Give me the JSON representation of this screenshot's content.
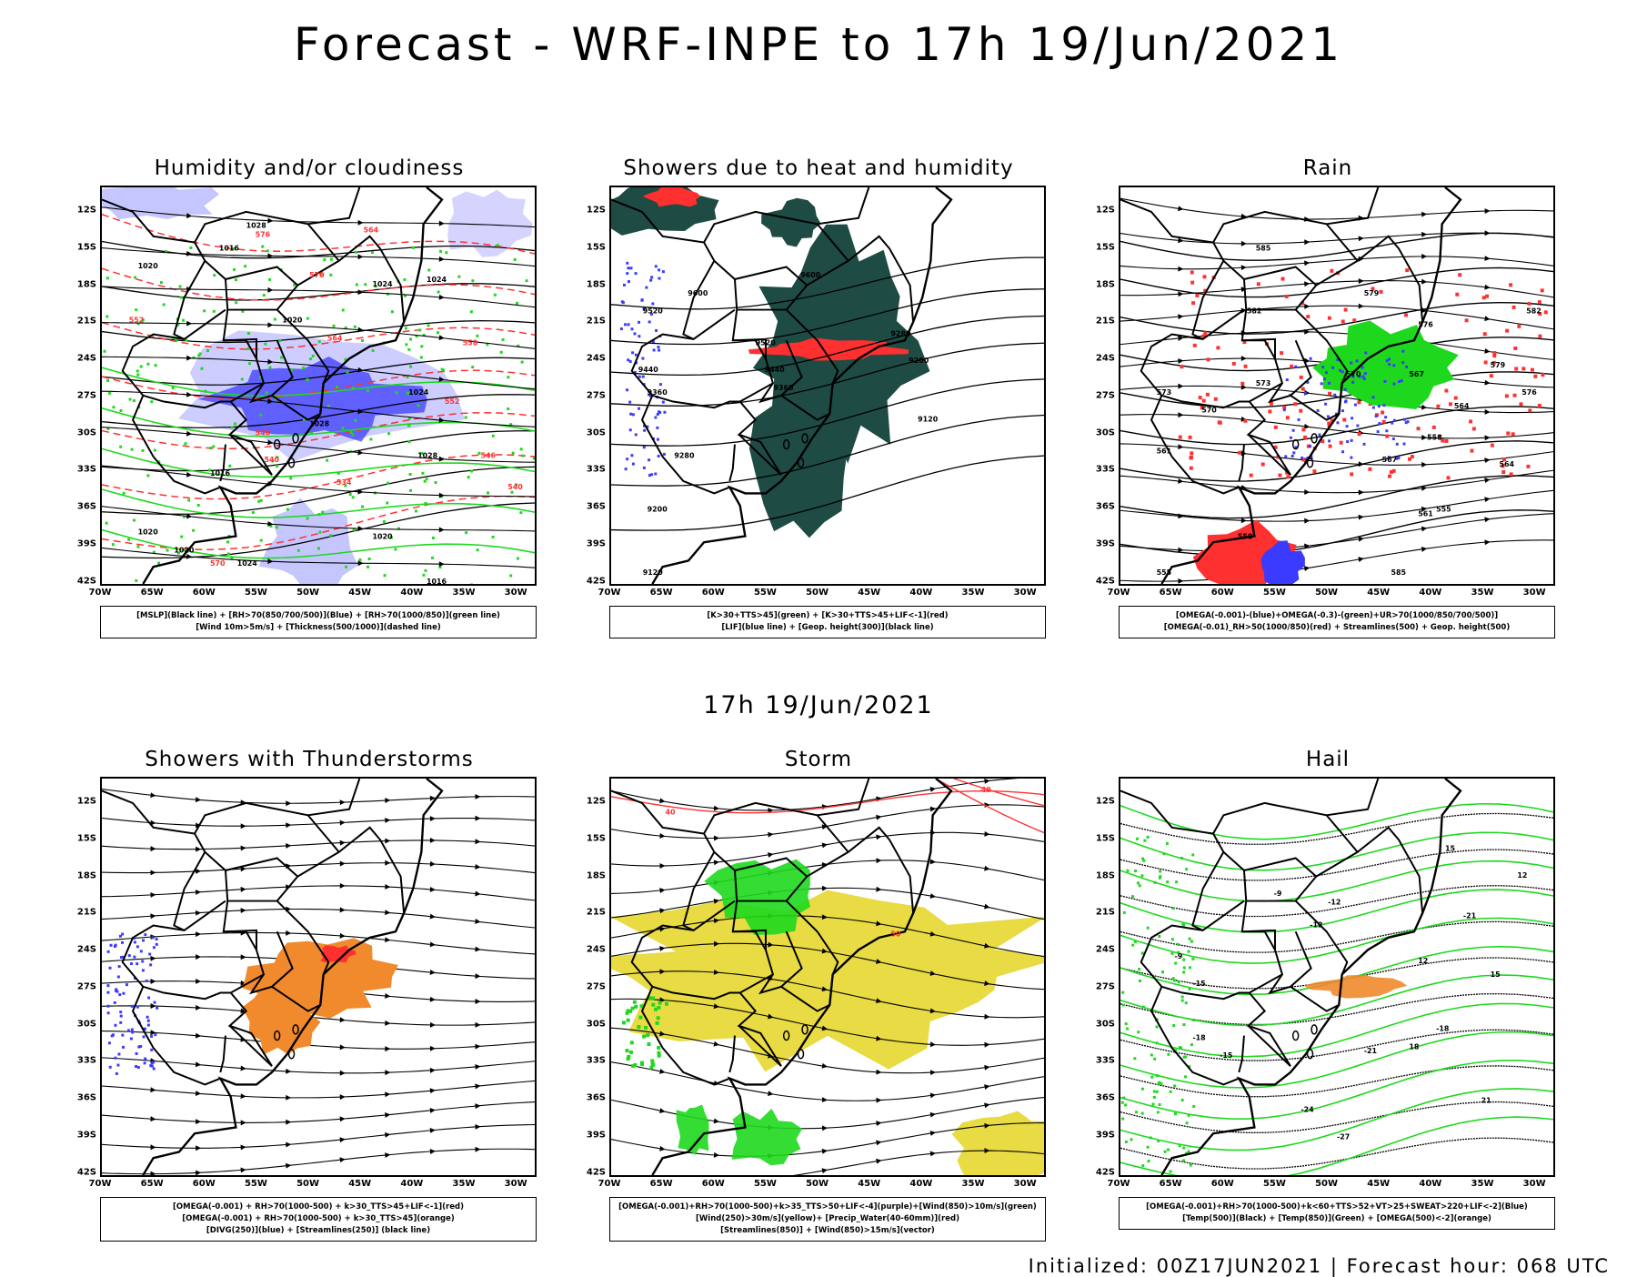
{
  "main_title": "Forecast - WRF-INPE to 17h 19/Jun/2021",
  "mid_title": "17h 19/Jun/2021",
  "footer": "Initialized: 00Z17JUN2021 | Forecast hour: 068 UTC",
  "axes": {
    "lat_labels": [
      "12S",
      "15S",
      "18S",
      "21S",
      "24S",
      "27S",
      "30S",
      "33S",
      "36S",
      "39S",
      "42S"
    ],
    "lon_labels": [
      "70W",
      "65W",
      "60W",
      "55W",
      "50W",
      "45W",
      "40W",
      "35W",
      "30W"
    ]
  },
  "panels": [
    {
      "title": "Humidity and/or cloudiness",
      "legend": [
        "[MSLP](Black line) + [RH>70(850/700/500)](Blue) + [RH>70(1000/850)](green line)",
        "[Wind 10m>5m/s] + [Thickness(500/1000)](dashed line)"
      ],
      "contour_labels": [
        "1016",
        "1020",
        "1024",
        "1028",
        "1016",
        "1020",
        "1024",
        "1028",
        "1020",
        "1024",
        "1020",
        "1016",
        "1020",
        "1024",
        "1028"
      ],
      "red_labels": [
        "576",
        "570",
        "564",
        "558",
        "552",
        "546",
        "540",
        "534",
        "570",
        "564",
        "552",
        "546",
        "540"
      ]
    },
    {
      "title": "Showers due to heat and humidity",
      "legend": [
        "[K>30+TTS>45](green) + [K>30+TTS>45+LIF<-1](red)",
        "[LIF](blue line) + [Geop. height(300)](black line)"
      ],
      "contour_labels": [
        "9600",
        "9520",
        "9440",
        "9360",
        "9280",
        "9200",
        "9120",
        "9600",
        "9520",
        "9440",
        "9360",
        "9280",
        "9200",
        "9120"
      ]
    },
    {
      "title": "Rain",
      "legend": [
        "[OMEGA(-0.001)-(blue)+OMEGA(-0.3)-(green)+UR>70(1000/850/700/500)]",
        "[OMEGA(-0.01)_RH>50(1000/850)(red) + Streamlines(500) + Geop. height(500)"
      ],
      "contour_labels": [
        "585",
        "582",
        "579",
        "576",
        "573",
        "570",
        "567",
        "564",
        "561",
        "558",
        "555",
        "585",
        "582",
        "579",
        "576",
        "573",
        "570",
        "567",
        "564",
        "561",
        "558",
        "555"
      ]
    },
    {
      "title": "Showers with Thunderstorms",
      "legend": [
        "[OMEGA(-0.001) + RH>70(1000-500) + k>30_TTS>45+LIF<-1](red)",
        "[OMEGA(-0.001) + RH>70(1000-500) + k>30_TTS>45](orange)",
        "[DIVG(250)](blue) + [Streamlines(250)] (black line)"
      ]
    },
    {
      "title": "Storm",
      "legend": [
        "[OMEGA(-0.001)+RH>70(1000-500)+k>35_TTS>50+LIF<-4](purple)+[Wind(850)>10m/s](green)",
        "[Wind(250)>30m/s](yellow)+ [Precip_Water(40-60mm)](red)",
        "[Streamlines(850)] + [Wind(850)>15m/s](vector)"
      ],
      "contour_labels": [
        "40",
        "40",
        "50"
      ]
    },
    {
      "title": "Hail",
      "legend": [
        "[OMEGA(-0.001)+RH>70(1000-500)+k<60+TTS>52+VT>25+SWEAT>220+LIF<-2](Blue)",
        "[Temp(500)](Black) + [Temp(850)](Green) + [OMEGA(500)<-2](orange)"
      ],
      "contour_labels": [
        "-9",
        "-12",
        "-15",
        "-18",
        "-21",
        "-24",
        "-27",
        "-9",
        "-12",
        "-15",
        "-18",
        "-21",
        "12",
        "15",
        "12",
        "15",
        "18",
        "21"
      ]
    }
  ],
  "colors": {
    "blue": "#3b3bff",
    "green": "#1ed81e",
    "red": "#ff3030",
    "orange": "#f08a2c",
    "yellow": "#e6d834",
    "darkgreen": "#1e4b44",
    "lightblue": "#b8b8ff",
    "purple": "#a020f0"
  }
}
